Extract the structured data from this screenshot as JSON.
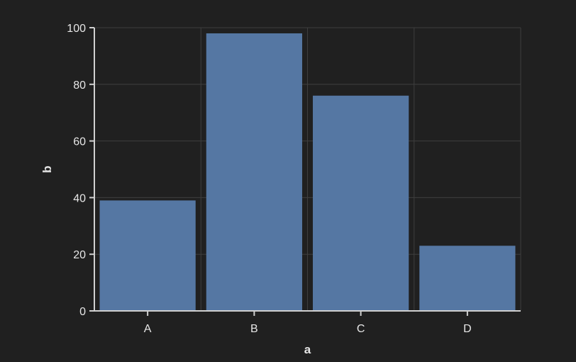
{
  "chart_data": {
    "type": "bar",
    "categories": [
      "A",
      "B",
      "C",
      "D"
    ],
    "values": [
      39,
      98,
      76,
      23
    ],
    "xlabel": "a",
    "ylabel": "b",
    "ylim": [
      0,
      100
    ],
    "yticks": [
      0,
      20,
      40,
      60,
      80,
      100
    ],
    "grid": true,
    "colors": {
      "bar": "#5577a3",
      "background": "#202020"
    }
  }
}
